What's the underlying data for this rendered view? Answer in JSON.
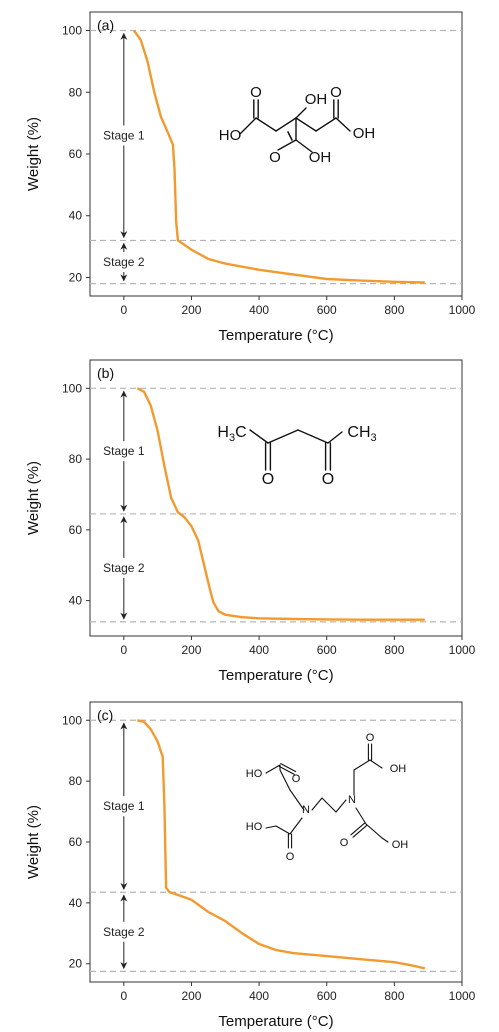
{
  "colors": {
    "curve": "#F39A2E",
    "guide": "#B5B5B5",
    "axis": "#333333",
    "arrow": "#222222"
  },
  "chart_data": [
    {
      "type": "line",
      "panel_label": "(a)",
      "xlabel": "Temperature (°C)",
      "ylabel": "Weight (%)",
      "xlim": [
        -100,
        1000
      ],
      "ylim": [
        14,
        106
      ],
      "xticks": [
        "0",
        "200",
        "400",
        "600",
        "800",
        "1000"
      ],
      "xtick_values": [
        0,
        200,
        400,
        600,
        800,
        1000
      ],
      "yticks": [
        "20",
        "40",
        "60",
        "80",
        "100"
      ],
      "ytick_values": [
        20,
        40,
        60,
        80,
        100
      ],
      "reference_lines": [
        100,
        32,
        18
      ],
      "stages": [
        {
          "label": "Stage 1",
          "from": 100,
          "to": 32
        },
        {
          "label": "Stage 2",
          "from": 32,
          "to": 18
        }
      ],
      "series": [
        {
          "x": [
            30,
            50,
            70,
            90,
            110,
            130,
            145,
            150,
            155,
            160,
            200,
            250,
            300,
            400,
            500,
            600,
            700,
            800,
            890
          ],
          "y": [
            100,
            97,
            90,
            80,
            72,
            67,
            63,
            55,
            38,
            32,
            29,
            26,
            24.5,
            22.5,
            21,
            19.5,
            19,
            18.6,
            18.4
          ]
        }
      ],
      "molecule": {
        "name": "citric acid",
        "labels": {
          "ho": "HO",
          "oh_top": "OH",
          "oh_right": "OH",
          "oh_bottom": "OH",
          "o": "O"
        }
      }
    },
    {
      "type": "line",
      "panel_label": "(b)",
      "xlabel": "Temperature (°C)",
      "ylabel": "Weight (%)",
      "xlim": [
        -100,
        1000
      ],
      "ylim": [
        30,
        108
      ],
      "xticks": [
        "0",
        "200",
        "400",
        "600",
        "800",
        "1000"
      ],
      "xtick_values": [
        0,
        200,
        400,
        600,
        800,
        1000
      ],
      "yticks": [
        "40",
        "60",
        "80",
        "100"
      ],
      "ytick_values": [
        40,
        60,
        80,
        100
      ],
      "reference_lines": [
        100,
        64.5,
        34
      ],
      "stages": [
        {
          "label": "Stage 1",
          "from": 100,
          "to": 64.5
        },
        {
          "label": "Stage 2",
          "from": 64.5,
          "to": 34
        }
      ],
      "series": [
        {
          "x": [
            40,
            60,
            80,
            100,
            120,
            140,
            160,
            180,
            200,
            220,
            240,
            255,
            265,
            280,
            300,
            350,
            400,
            500,
            600,
            700,
            800,
            890
          ],
          "y": [
            100,
            99,
            95,
            88,
            78,
            69,
            65,
            63.5,
            61,
            57,
            49,
            43,
            39.5,
            37,
            36,
            35.3,
            35,
            34.8,
            34.7,
            34.6,
            34.6,
            34.6
          ]
        }
      ],
      "molecule": {
        "name": "acetylacetone",
        "labels": {
          "h3c": "H3C",
          "ch3": "CH3",
          "o": "O"
        }
      }
    },
    {
      "type": "line",
      "panel_label": "(c)",
      "xlabel": "Temperature (°C)",
      "ylabel": "Weight (%)",
      "xlim": [
        -100,
        1000
      ],
      "ylim": [
        14,
        106
      ],
      "xticks": [
        "0",
        "200",
        "400",
        "600",
        "800",
        "1000"
      ],
      "xtick_values": [
        0,
        200,
        400,
        600,
        800,
        1000
      ],
      "yticks": [
        "20",
        "40",
        "60",
        "80",
        "100"
      ],
      "ytick_values": [
        20,
        40,
        60,
        80,
        100
      ],
      "reference_lines": [
        100,
        43.5,
        17.5
      ],
      "stages": [
        {
          "label": "Stage 1",
          "from": 100,
          "to": 43.5
        },
        {
          "label": "Stage 2",
          "from": 43.5,
          "to": 17.5
        }
      ],
      "series": [
        {
          "x": [
            40,
            60,
            80,
            100,
            115,
            120,
            125,
            135,
            150,
            200,
            250,
            300,
            350,
            400,
            450,
            500,
            600,
            700,
            800,
            850,
            890
          ],
          "y": [
            100,
            99.5,
            97,
            93,
            88,
            72,
            45,
            43.5,
            43,
            41,
            37,
            34,
            30,
            26.5,
            24.5,
            23.5,
            22.5,
            21.5,
            20.5,
            19.5,
            18.5
          ]
        }
      ],
      "molecule": {
        "name": "EDTA",
        "labels": {
          "ho": "HO",
          "oh": "OH",
          "n": "N",
          "o": "O"
        }
      }
    }
  ]
}
